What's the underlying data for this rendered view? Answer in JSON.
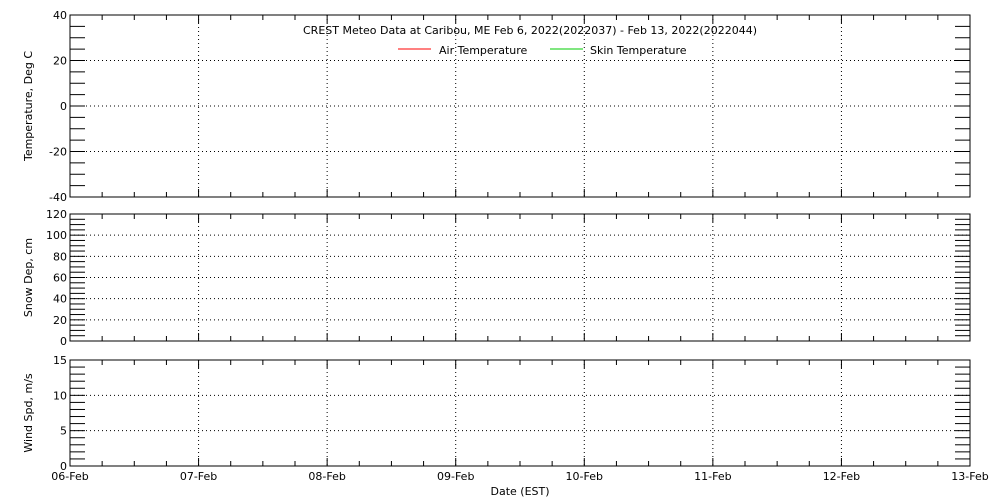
{
  "chart_data": [
    {
      "type": "line",
      "title": "CREST Meteo Data at Caribou, ME   Feb  6, 2022(2022037) - Feb 13, 2022(2022044)",
      "ylabel": "Temperature, Deg C",
      "ylim": [
        -40,
        40
      ],
      "yticks": [
        -40,
        -20,
        0,
        20,
        40
      ],
      "yminor": 5,
      "grid": true,
      "legend_placement": "top-center",
      "series": [
        {
          "name": "Air Temperature",
          "color": "#ff0000",
          "values": []
        },
        {
          "name": "Skin Temperature",
          "color": "#00cc00",
          "values": []
        }
      ]
    },
    {
      "type": "line",
      "ylabel": "Snow Dep, cm",
      "ylim": [
        0,
        120
      ],
      "yticks": [
        0,
        20,
        40,
        60,
        80,
        100,
        120
      ],
      "yminor": 5,
      "grid": true,
      "series": []
    },
    {
      "type": "line",
      "ylabel": "Wind Spd, m/s",
      "ylim": [
        0,
        15
      ],
      "yticks": [
        0,
        5,
        10,
        15
      ],
      "yminor": 1,
      "grid": true,
      "series": []
    }
  ],
  "xaxis": {
    "xlabel": "Date (EST)",
    "ticks": [
      "06-Feb",
      "07-Feb",
      "08-Feb",
      "09-Feb",
      "10-Feb",
      "11-Feb",
      "12-Feb",
      "13-Feb"
    ],
    "minor_per_day": 4
  }
}
